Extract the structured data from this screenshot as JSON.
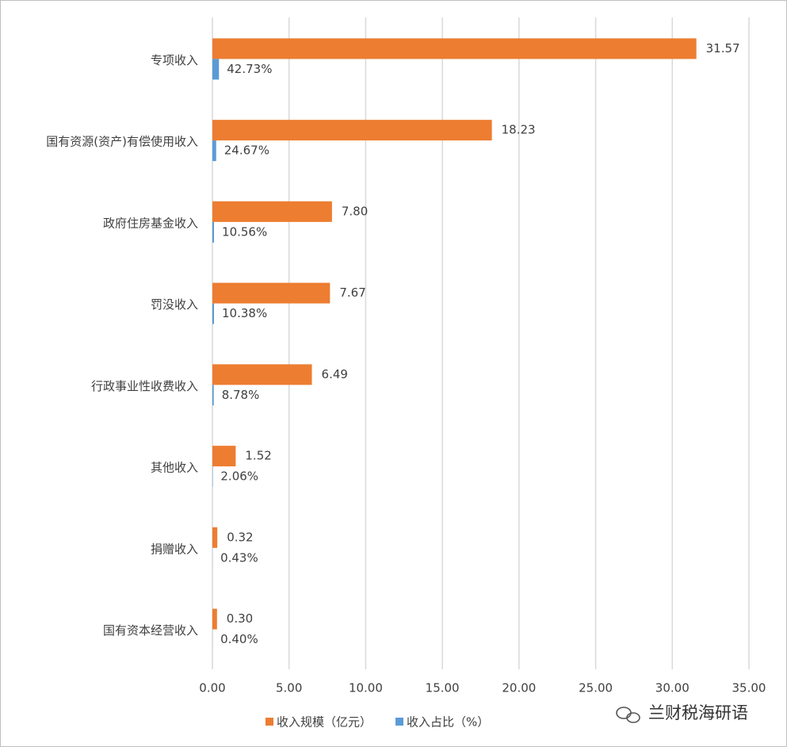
{
  "chart_data": {
    "type": "bar",
    "orientation": "horizontal",
    "categories": [
      "专项收入",
      "国有资源(资产)有偿使用收入",
      "政府住房基金收入",
      "罚没收入",
      "行政事业性收费收入",
      "其他收入",
      "捐赠收入",
      "国有资本经营收入"
    ],
    "series": [
      {
        "name": "收入规模（亿元）",
        "color": "#ed7d31",
        "values": [
          31.57,
          18.23,
          7.8,
          7.67,
          6.49,
          1.52,
          0.32,
          0.3
        ],
        "value_labels": [
          "31.57",
          "18.23",
          "7.80",
          "7.67",
          "6.49",
          "1.52",
          "0.32",
          "0.30"
        ]
      },
      {
        "name": "收入占比（%）",
        "color": "#5b9bd5",
        "values": [
          0.4273,
          0.2467,
          0.1056,
          0.1038,
          0.0878,
          0.0206,
          0.0043,
          0.004
        ],
        "value_labels": [
          "42.73%",
          "24.67%",
          "10.56%",
          "10.38%",
          "8.78%",
          "2.06%",
          "0.43%",
          "0.40%"
        ]
      }
    ],
    "xlim": [
      0,
      35
    ],
    "xticks": [
      {
        "value": 0,
        "label": "0.00"
      },
      {
        "value": 5,
        "label": "5.00"
      },
      {
        "value": 10,
        "label": "10.00"
      },
      {
        "value": 15,
        "label": "15.00"
      },
      {
        "value": 20,
        "label": "20.00"
      },
      {
        "value": 25,
        "label": "25.00"
      },
      {
        "value": 30,
        "label": "30.00"
      },
      {
        "value": 35,
        "label": "35.00"
      }
    ],
    "grid": true,
    "legend": "bottom",
    "watermark": "兰财税海研语"
  }
}
